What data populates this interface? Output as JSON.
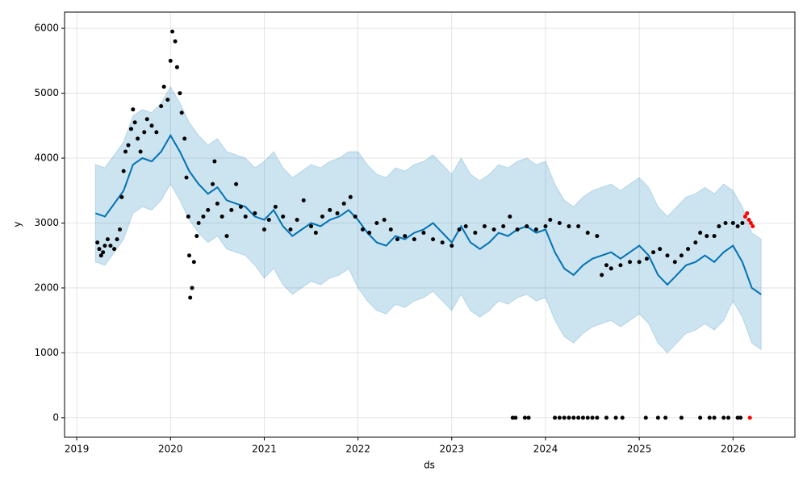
{
  "chart_data": {
    "type": "scatter",
    "x_label": "ds",
    "y_label": "y",
    "xlim": [
      2018.87,
      2026.66
    ],
    "ylim": [
      -300,
      6250
    ],
    "xticks": [
      2019,
      2020,
      2021,
      2022,
      2023,
      2024,
      2025,
      2026
    ],
    "yticks": [
      0,
      1000,
      2000,
      3000,
      4000,
      5000,
      6000
    ],
    "grid": true,
    "forecast": {
      "color": "#0072b2",
      "band_opacity": 0.2,
      "x": [
        2019.2,
        2019.3,
        2019.4,
        2019.5,
        2019.6,
        2019.7,
        2019.8,
        2019.9,
        2020.0,
        2020.1,
        2020.2,
        2020.3,
        2020.4,
        2020.5,
        2020.6,
        2020.7,
        2020.8,
        2020.9,
        2021.0,
        2021.1,
        2021.2,
        2021.3,
        2021.4,
        2021.5,
        2021.6,
        2021.7,
        2021.8,
        2021.9,
        2022.0,
        2022.1,
        2022.2,
        2022.3,
        2022.4,
        2022.5,
        2022.6,
        2022.7,
        2022.8,
        2022.9,
        2023.0,
        2023.1,
        2023.2,
        2023.3,
        2023.4,
        2023.5,
        2023.6,
        2023.7,
        2023.8,
        2023.9,
        2024.0,
        2024.1,
        2024.2,
        2024.3,
        2024.4,
        2024.5,
        2024.6,
        2024.7,
        2024.8,
        2024.9,
        2025.0,
        2025.1,
        2025.2,
        2025.3,
        2025.4,
        2025.5,
        2025.6,
        2025.7,
        2025.8,
        2025.9,
        2026.0,
        2026.1,
        2026.2,
        2026.3
      ],
      "values": [
        3150,
        3100,
        3300,
        3500,
        3900,
        4000,
        3950,
        4100,
        4350,
        4100,
        3800,
        3600,
        3450,
        3550,
        3350,
        3300,
        3250,
        3100,
        3050,
        3200,
        2950,
        2800,
        2900,
        3000,
        2950,
        3050,
        3100,
        3200,
        3050,
        2850,
        2700,
        2650,
        2800,
        2750,
        2850,
        2900,
        3000,
        2850,
        2700,
        2950,
        2700,
        2600,
        2700,
        2850,
        2800,
        2900,
        2950,
        2850,
        2900,
        2550,
        2300,
        2200,
        2350,
        2450,
        2500,
        2550,
        2450,
        2550,
        2650,
        2500,
        2200,
        2050,
        2200,
        2350,
        2400,
        2500,
        2400,
        2550,
        2650,
        2400,
        2000,
        1900
      ],
      "upper": [
        3900,
        3850,
        4050,
        4250,
        4650,
        4750,
        4700,
        4850,
        5100,
        4850,
        4550,
        4350,
        4200,
        4300,
        4100,
        4050,
        4000,
        3850,
        3950,
        4100,
        3850,
        3700,
        3800,
        3900,
        3850,
        3950,
        4000,
        4100,
        4100,
        3900,
        3750,
        3700,
        3850,
        3800,
        3900,
        3950,
        4050,
        3900,
        3750,
        4000,
        3750,
        3650,
        3750,
        3900,
        3850,
        3950,
        4000,
        3900,
        3950,
        3600,
        3350,
        3250,
        3400,
        3500,
        3550,
        3600,
        3500,
        3600,
        3700,
        3550,
        3250,
        3100,
        3250,
        3400,
        3450,
        3550,
        3450,
        3600,
        3500,
        3250,
        2850,
        2750
      ],
      "lower": [
        2400,
        2350,
        2550,
        2750,
        3150,
        3250,
        3200,
        3350,
        3600,
        3350,
        3050,
        2850,
        2700,
        2800,
        2600,
        2550,
        2500,
        2350,
        2150,
        2300,
        2050,
        1900,
        2000,
        2100,
        2050,
        2150,
        2200,
        2300,
        2000,
        1800,
        1650,
        1600,
        1750,
        1700,
        1800,
        1850,
        1950,
        1800,
        1650,
        1900,
        1650,
        1550,
        1650,
        1800,
        1750,
        1850,
        1900,
        1800,
        1850,
        1500,
        1250,
        1150,
        1300,
        1400,
        1450,
        1500,
        1400,
        1500,
        1600,
        1450,
        1150,
        1000,
        1150,
        1300,
        1350,
        1450,
        1350,
        1500,
        1800,
        1550,
        1150,
        1050
      ]
    },
    "points": {
      "color": "#000000",
      "x": [
        2019.22,
        2019.24,
        2019.26,
        2019.28,
        2019.3,
        2019.33,
        2019.36,
        2019.4,
        2019.43,
        2019.46,
        2019.48,
        2019.5,
        2019.52,
        2019.55,
        2019.58,
        2019.6,
        2019.62,
        2019.65,
        2019.68,
        2019.72,
        2019.75,
        2019.8,
        2019.85,
        2019.9,
        2019.93,
        2019.97,
        2020.0,
        2020.02,
        2020.05,
        2020.07,
        2020.1,
        2020.12,
        2020.15,
        2020.17,
        2020.19,
        2020.2,
        2020.21,
        2020.23,
        2020.25,
        2020.28,
        2020.3,
        2020.35,
        2020.4,
        2020.45,
        2020.47,
        2020.5,
        2020.55,
        2020.6,
        2020.65,
        2020.7,
        2020.75,
        2020.8,
        2020.9,
        2021.0,
        2021.05,
        2021.12,
        2021.2,
        2021.28,
        2021.35,
        2021.42,
        2021.5,
        2021.55,
        2021.62,
        2021.7,
        2021.78,
        2021.85,
        2021.92,
        2021.97,
        2022.05,
        2022.12,
        2022.2,
        2022.28,
        2022.35,
        2022.42,
        2022.5,
        2022.6,
        2022.7,
        2022.8,
        2022.9,
        2023.0,
        2023.08,
        2023.15,
        2023.25,
        2023.35,
        2023.45,
        2023.55,
        2023.62,
        2023.7,
        2023.8,
        2023.9,
        2024.0,
        2024.05,
        2024.15,
        2024.25,
        2024.35,
        2024.45,
        2024.55,
        2024.6,
        2024.65,
        2024.7,
        2024.8,
        2024.9,
        2025.0,
        2025.08,
        2025.15,
        2025.22,
        2025.3,
        2025.38,
        2025.45,
        2025.52,
        2025.6,
        2025.65,
        2025.72,
        2025.8,
        2025.85,
        2025.92,
        2026.0,
        2026.05,
        2026.1,
        2023.65,
        2023.68,
        2023.78,
        2023.82,
        2024.1,
        2024.15,
        2024.2,
        2024.25,
        2024.3,
        2024.35,
        2024.4,
        2024.45,
        2024.5,
        2024.55,
        2024.65,
        2024.75,
        2024.82,
        2025.07,
        2025.2,
        2025.28,
        2025.45,
        2025.65,
        2025.75,
        2025.8,
        2025.9,
        2025.95,
        2026.05,
        2026.08
      ],
      "values": [
        2700,
        2600,
        2500,
        2550,
        2650,
        2750,
        2650,
        2600,
        2750,
        2900,
        3400,
        3800,
        4100,
        4200,
        4450,
        4750,
        4550,
        4300,
        4100,
        4400,
        4600,
        4500,
        4400,
        4800,
        5100,
        4900,
        5500,
        5950,
        5800,
        5400,
        5000,
        4700,
        4300,
        3700,
        3100,
        2500,
        1850,
        2000,
        2400,
        2800,
        3000,
        3100,
        3200,
        3600,
        3950,
        3300,
        3100,
        2800,
        3200,
        3600,
        3250,
        3100,
        3150,
        2900,
        3050,
        3250,
        3100,
        2900,
        3050,
        3350,
        2950,
        2850,
        3100,
        3200,
        3150,
        3300,
        3400,
        3100,
        2900,
        2850,
        3000,
        3050,
        2900,
        2750,
        2800,
        2750,
        2850,
        2750,
        2700,
        2650,
        2900,
        2950,
        2850,
        2950,
        2900,
        2950,
        3100,
        2900,
        2950,
        2900,
        2950,
        3050,
        3000,
        2950,
        2950,
        2850,
        2800,
        2200,
        2350,
        2300,
        2350,
        2400,
        2400,
        2450,
        2550,
        2600,
        2500,
        2400,
        2500,
        2600,
        2700,
        2850,
        2800,
        2800,
        2950,
        3000,
        3000,
        2950,
        3000,
        0,
        0,
        0,
        0,
        0,
        0,
        0,
        0,
        0,
        0,
        0,
        0,
        0,
        0,
        0,
        0,
        0,
        0,
        0,
        0,
        0,
        0,
        0,
        0,
        0,
        0,
        0,
        0
      ]
    },
    "highlight": {
      "color": "#ff0000",
      "x": [
        2026.13,
        2026.15,
        2026.17,
        2026.19,
        2026.21,
        2026.18
      ],
      "values": [
        3100,
        3150,
        3050,
        3000,
        2950,
        0
      ]
    }
  }
}
